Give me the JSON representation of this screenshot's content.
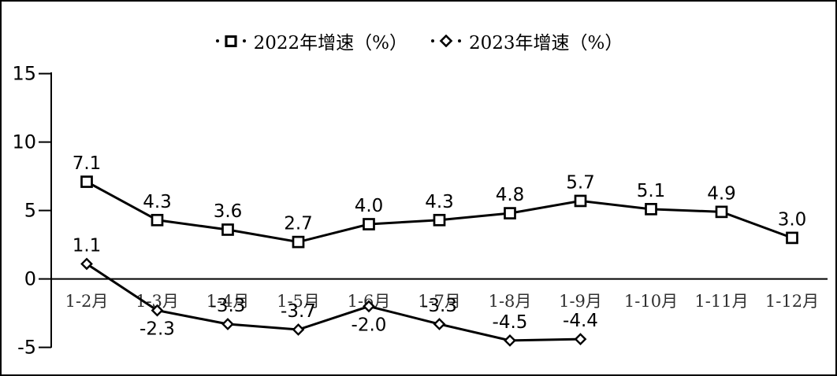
{
  "chart_data": {
    "type": "line",
    "title": "",
    "categories": [
      "1-2月",
      "1-3月",
      "1-4月",
      "1-5月",
      "1-6月",
      "1-7月",
      "1-8月",
      "1-9月",
      "1-10月",
      "1-11月",
      "1-12月"
    ],
    "series": [
      {
        "name": "2022年增速（%）",
        "marker": "square",
        "values": [
          7.1,
          4.3,
          3.6,
          2.7,
          4.0,
          4.3,
          4.8,
          5.7,
          5.1,
          4.9,
          3.0
        ],
        "label_positions": [
          "above",
          "above",
          "above",
          "above",
          "above",
          "above",
          "above",
          "above",
          "above",
          "above",
          "above"
        ]
      },
      {
        "name": "2023年增速（%）",
        "marker": "diamond",
        "values": [
          1.1,
          -2.3,
          -3.3,
          -3.7,
          -2.0,
          -3.3,
          -4.5,
          -4.4
        ],
        "label_positions": [
          "above",
          "below",
          "above",
          "above",
          "below",
          "above",
          "above",
          "above"
        ]
      }
    ],
    "yticks": [
      15,
      10,
      5,
      0,
      -5
    ],
    "ylim": [
      -5,
      15
    ],
    "legend_position": "top",
    "zero_gridline": true,
    "grid": "off",
    "colors": {
      "line": "#000000",
      "marker_fill": "#ffffff",
      "axis": "#000000",
      "x_label": "#303030",
      "background": "#ffffff",
      "border": "#000000"
    }
  }
}
